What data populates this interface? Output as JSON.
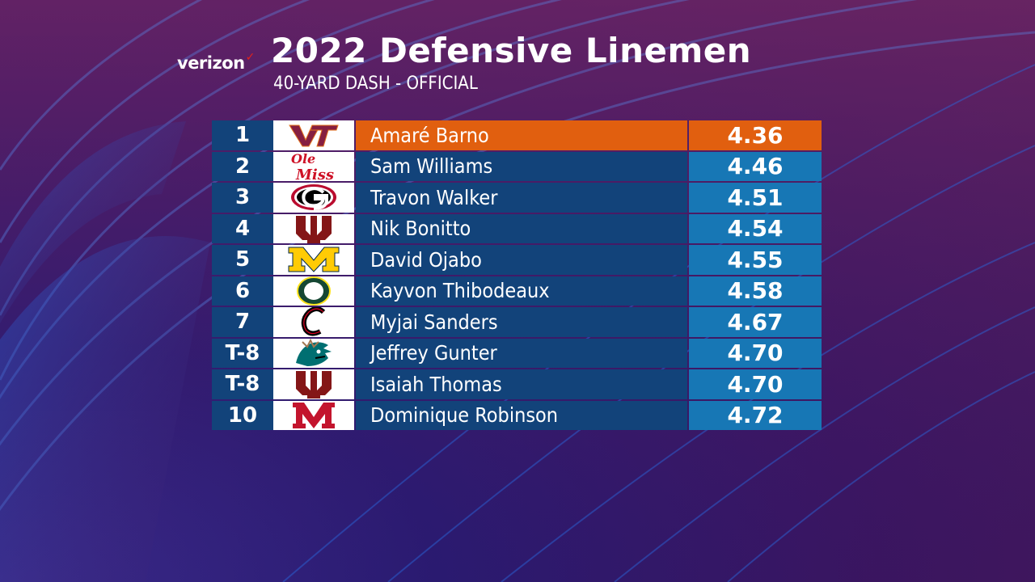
{
  "header": {
    "sponsor": "verizon",
    "title": "2022 Defensive Linemen",
    "subtitle": "40-YARD DASH - OFFICIAL"
  },
  "colors": {
    "highlight": "#e15f0f",
    "row_dark": "#12437a",
    "row_time": "#1777b5"
  },
  "rows": [
    {
      "rank": "1",
      "logo": "virginia-tech-logo",
      "name": "Amaré Barno",
      "time": "4.36"
    },
    {
      "rank": "2",
      "logo": "ole-miss-logo",
      "name": "Sam Williams",
      "time": "4.46"
    },
    {
      "rank": "3",
      "logo": "georgia-logo",
      "name": "Travon Walker",
      "time": "4.51"
    },
    {
      "rank": "4",
      "logo": "oklahoma-logo",
      "name": "Nik Bonitto",
      "time": "4.54"
    },
    {
      "rank": "5",
      "logo": "michigan-logo",
      "name": "David Ojabo",
      "time": "4.55"
    },
    {
      "rank": "6",
      "logo": "oregon-logo",
      "name": "Kayvon Thibodeaux",
      "time": "4.58"
    },
    {
      "rank": "7",
      "logo": "cincinnati-logo",
      "name": "Myjai Sanders",
      "time": "4.67"
    },
    {
      "rank": "T-8",
      "logo": "coastal-carolina-logo",
      "name": "Jeffrey Gunter",
      "time": "4.70"
    },
    {
      "rank": "T-8",
      "logo": "oklahoma-logo",
      "name": "Isaiah Thomas",
      "time": "4.70"
    },
    {
      "rank": "10",
      "logo": "miami-ohio-logo",
      "name": "Dominique Robinson",
      "time": "4.72"
    }
  ]
}
